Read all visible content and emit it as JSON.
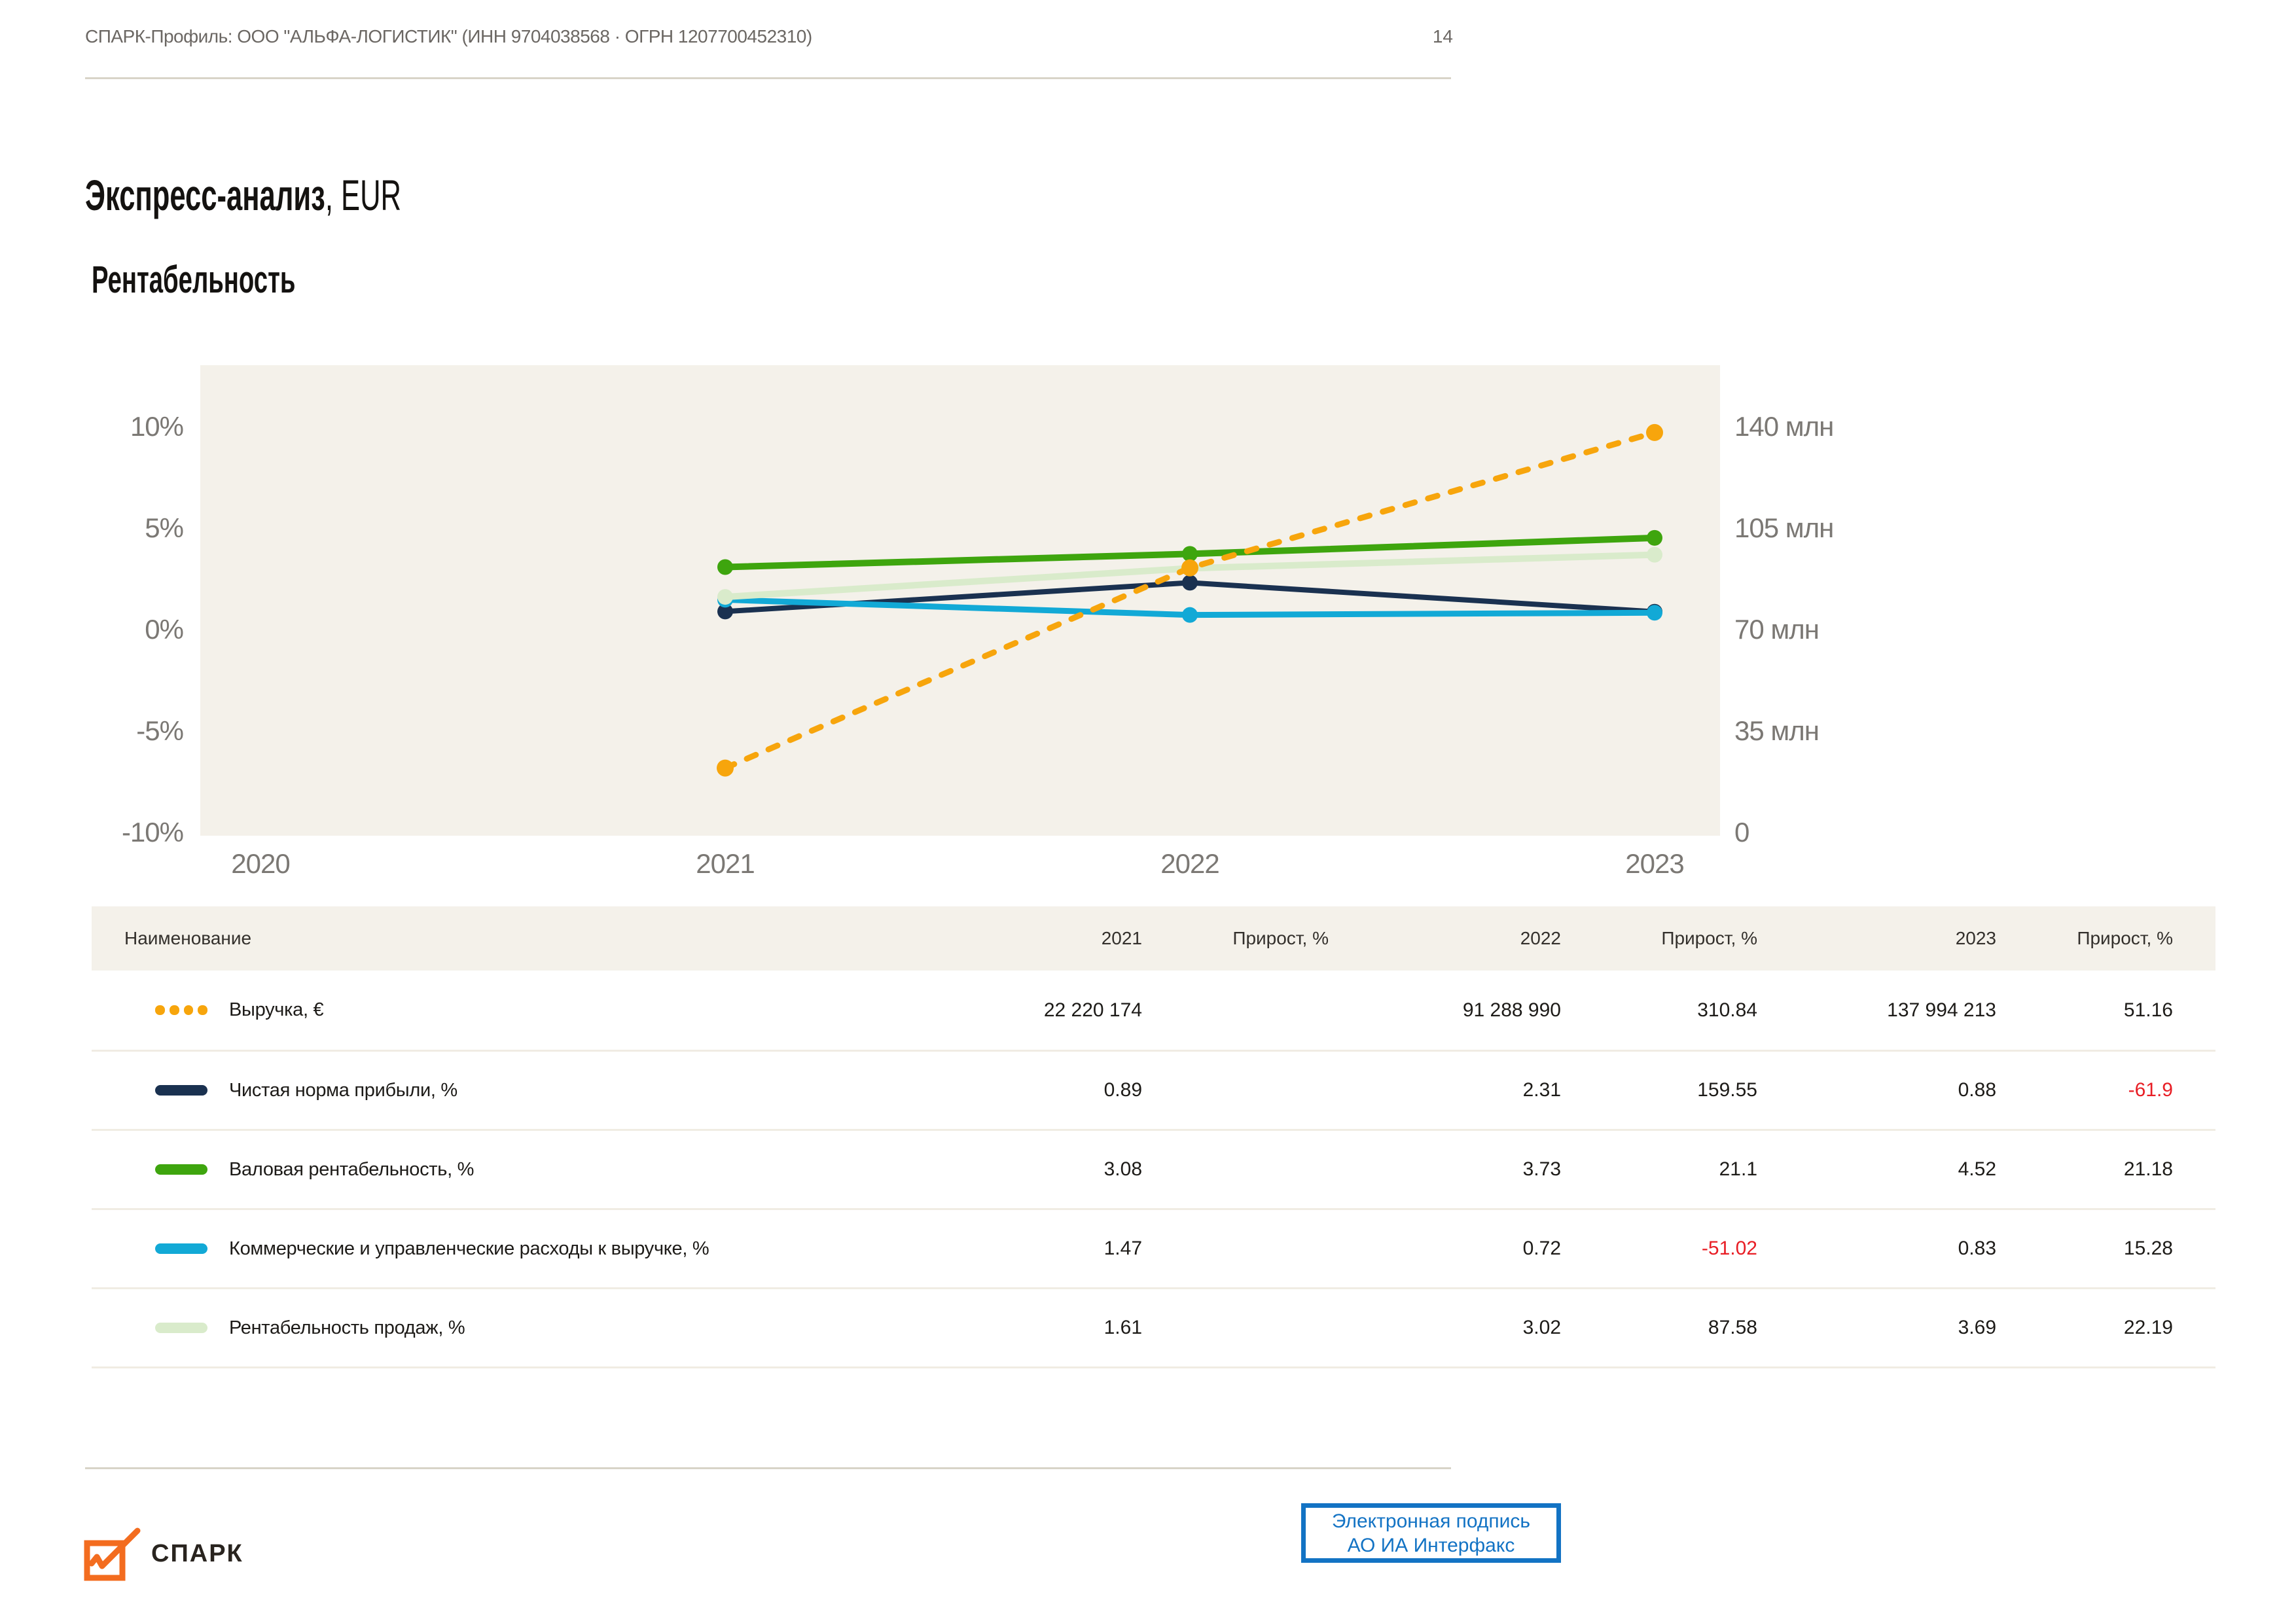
{
  "page": {
    "header_meta": "СПАРК-Профиль: ООО \"АЛЬФА-ЛОГИСТИК\" (ИНН 9704038568 · ОГРН 1207700452310)",
    "page_number": "14"
  },
  "title": {
    "main_bold": "Экспресс-анализ",
    "main_suffix": ", EUR",
    "section": "Рентабельность"
  },
  "chart_data": {
    "type": "line",
    "title": "Рентабельность",
    "x_categories": [
      "2020",
      "2021",
      "2022",
      "2023"
    ],
    "grid": false,
    "legend_position": "table-below",
    "plot_background": "#f4f1ea",
    "left_axis": {
      "tick_labels": [
        "10%",
        "5%",
        "0%",
        "-5%",
        "-10%"
      ],
      "min": -10,
      "max": 10,
      "unit": "%"
    },
    "right_axis": {
      "tick_labels": [
        "140 млн",
        "105 млн",
        "70 млн",
        "35 млн",
        "0"
      ],
      "min": 0,
      "max": 140000000,
      "unit": "EUR"
    },
    "series": [
      {
        "name": "Выручка, €",
        "axis": "right",
        "color": "#f7a50c",
        "dashed": true,
        "z": 5,
        "width": 9,
        "x": [
          2021,
          2022,
          2023
        ],
        "values": [
          22220174,
          91288990,
          137994213
        ]
      },
      {
        "name": "Чистая норма прибыли, %",
        "axis": "left",
        "color": "#1a3150",
        "dashed": false,
        "z": 1,
        "width": 8,
        "x": [
          2021,
          2022,
          2023
        ],
        "values": [
          0.89,
          2.31,
          0.88
        ]
      },
      {
        "name": "Валовая рентабельность, %",
        "axis": "left",
        "color": "#3ea50e",
        "dashed": false,
        "z": 4,
        "width": 10,
        "x": [
          2021,
          2022,
          2023
        ],
        "values": [
          3.08,
          3.73,
          4.52
        ]
      },
      {
        "name": "Коммерческие и управленческие расходы к выручке, %",
        "axis": "left",
        "color": "#12a9d6",
        "dashed": false,
        "z": 2,
        "width": 9,
        "x": [
          2021,
          2022,
          2023
        ],
        "values": [
          1.47,
          0.72,
          0.83
        ]
      },
      {
        "name": "Рентабельность продаж, %",
        "axis": "left",
        "color": "#d9ebcb",
        "dashed": false,
        "z": 3,
        "width": 10,
        "x": [
          2021,
          2022,
          2023
        ],
        "values": [
          1.61,
          3.02,
          3.69
        ]
      }
    ]
  },
  "table": {
    "headers": [
      "Наименование",
      "2021",
      "Прирост, %",
      "2022",
      "Прирост, %",
      "2023",
      "Прирост, %"
    ],
    "rows": [
      {
        "label": "Выручка, €",
        "swatch": {
          "color": "#f7a50c",
          "dashed": true
        },
        "values": [
          "22 220 174",
          "",
          "91 288 990",
          "310.84",
          "137 994 213",
          "51.16"
        ]
      },
      {
        "label": "Чистая норма прибыли, %",
        "swatch": {
          "color": "#1a3150",
          "dashed": false
        },
        "values": [
          "0.89",
          "",
          "2.31",
          "159.55",
          "0.88",
          "-61.9"
        ]
      },
      {
        "label": "Валовая рентабельность, %",
        "swatch": {
          "color": "#3ea50e",
          "dashed": false
        },
        "values": [
          "3.08",
          "",
          "3.73",
          "21.1",
          "4.52",
          "21.18"
        ]
      },
      {
        "label": "Коммерческие и управленческие расходы к выручке, %",
        "swatch": {
          "color": "#12a9d6",
          "dashed": false
        },
        "values": [
          "1.47",
          "",
          "0.72",
          "-51.02",
          "0.83",
          "15.28"
        ]
      },
      {
        "label": "Рентабельность продаж, %",
        "swatch": {
          "color": "#d9ebcb",
          "dashed": false
        },
        "values": [
          "1.61",
          "",
          "3.02",
          "87.58",
          "3.69",
          "22.19"
        ]
      }
    ]
  },
  "footer": {
    "logo_text": "СПАРК",
    "signature_line1": "Электронная подпись",
    "signature_line2": "АО ИА Интерфакс"
  },
  "colors": {
    "accent_orange": "#f7a50c",
    "logo_orange": "#f36c1f",
    "navy": "#1a3150",
    "green": "#3ea50e",
    "light_green": "#d9ebcb",
    "cyan": "#12a9d6",
    "negative_red": "#e81e25",
    "signature_blue": "#1373c4",
    "beige": "#f4f1ea"
  }
}
